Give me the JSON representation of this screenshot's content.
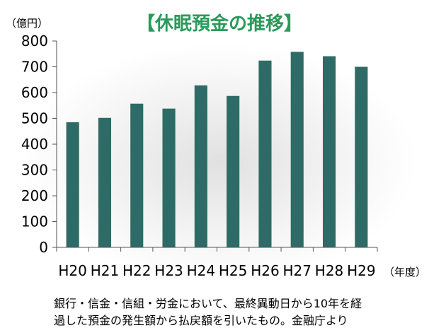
{
  "chart_data": {
    "type": "bar",
    "title": "【休眠預金の推移】",
    "ylabel": "（億円）",
    "xlabel": "（年度）",
    "categories": [
      "H20",
      "H21",
      "H22",
      "H23",
      "H24",
      "H25",
      "H26",
      "H27",
      "H28",
      "H29"
    ],
    "values": [
      485,
      502,
      557,
      538,
      628,
      587,
      724,
      758,
      741,
      700
    ],
    "ylim": [
      0,
      800
    ],
    "yticks": [
      0,
      100,
      200,
      300,
      400,
      500,
      600,
      700,
      800
    ],
    "grid": false,
    "bar_color": "#2e6b66"
  },
  "note": {
    "line1": "銀行・信金・信組・労金において、最終異動日から10年を経",
    "line2": "過した預金の発生額から払戻額を引いたもの。金融庁より"
  }
}
